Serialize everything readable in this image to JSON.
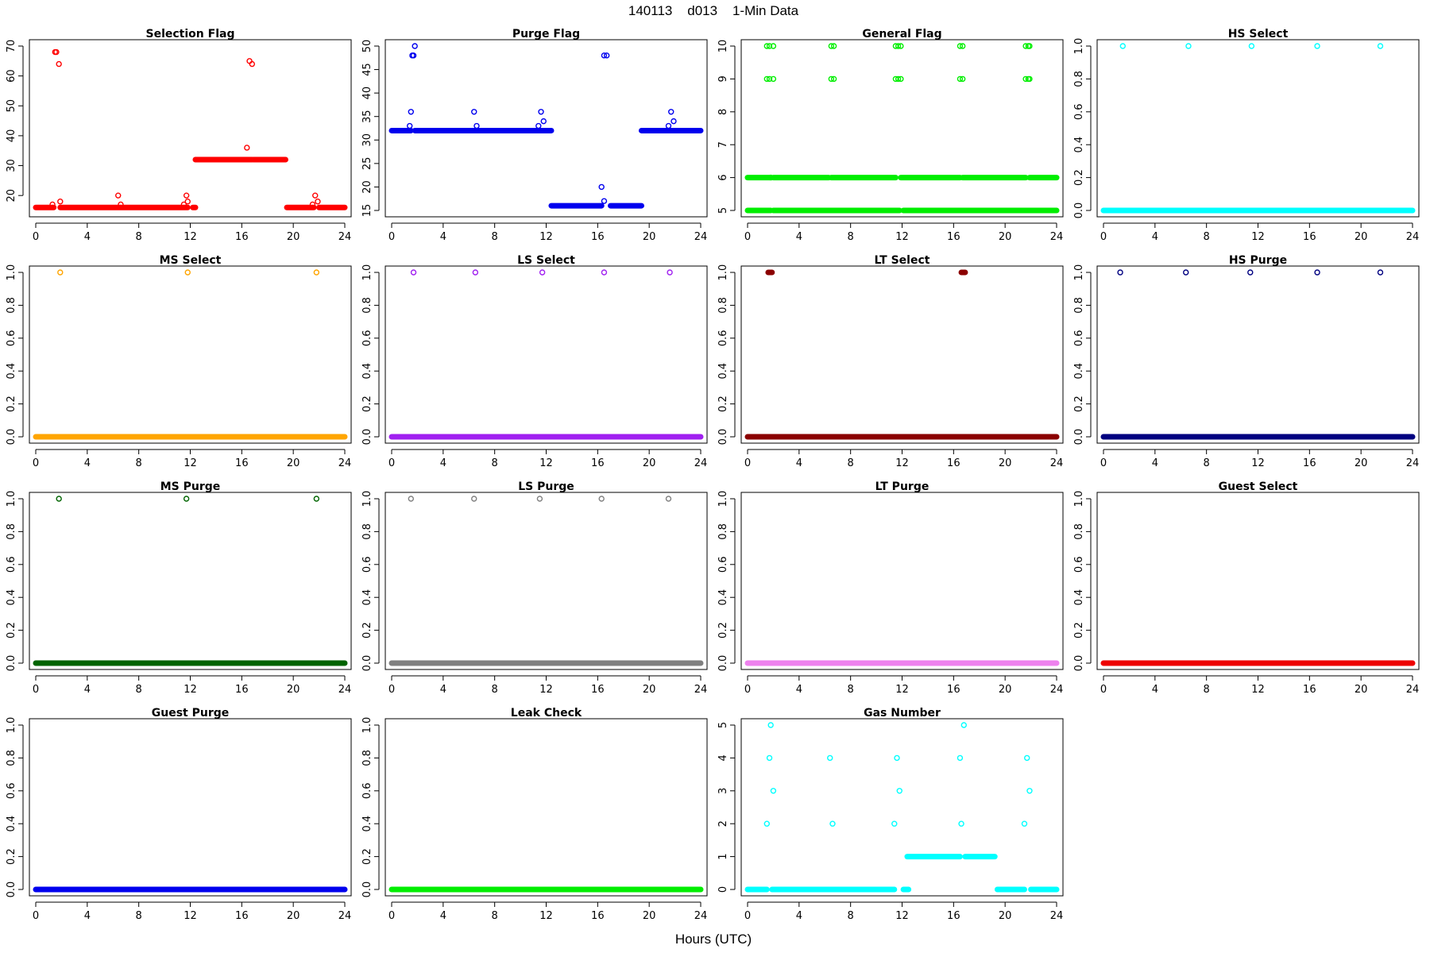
{
  "figure": {
    "title": "140113    d013    1-Min Data",
    "xlabel": "Hours (UTC)"
  },
  "chart_data": [
    {
      "type": "scatter",
      "title": "Selection Flag",
      "color": "#ff0000",
      "xlim": [
        0,
        24
      ],
      "ylim": [
        15,
        70
      ],
      "xticks": [
        0,
        4,
        8,
        12,
        16,
        20,
        24
      ],
      "yticks": [
        20,
        30,
        40,
        50,
        60,
        70
      ],
      "segments": [
        [
          0,
          1.4,
          16
        ],
        [
          1.9,
          11.8,
          16
        ],
        [
          12.2,
          12.4,
          16
        ],
        [
          12.4,
          16.8,
          32
        ],
        [
          16.9,
          19.4,
          32
        ],
        [
          19.5,
          21.6,
          16
        ],
        [
          22.0,
          24,
          16
        ]
      ],
      "points": [
        [
          1.3,
          17
        ],
        [
          1.5,
          68
        ],
        [
          1.6,
          68
        ],
        [
          1.8,
          64
        ],
        [
          1.9,
          18
        ],
        [
          6.4,
          20
        ],
        [
          6.6,
          17
        ],
        [
          11.5,
          17
        ],
        [
          11.7,
          20
        ],
        [
          11.8,
          18
        ],
        [
          16.4,
          36
        ],
        [
          16.6,
          65
        ],
        [
          16.8,
          64
        ],
        [
          21.5,
          17
        ],
        [
          21.7,
          20
        ],
        [
          21.9,
          18
        ]
      ]
    },
    {
      "type": "scatter",
      "title": "Purge Flag",
      "color": "#0000ee",
      "xlim": [
        0,
        24
      ],
      "ylim": [
        15,
        50
      ],
      "xticks": [
        0,
        4,
        8,
        12,
        16,
        20,
        24
      ],
      "yticks": [
        15,
        20,
        25,
        30,
        35,
        40,
        45,
        50
      ],
      "segments": [
        [
          0,
          1.5,
          32
        ],
        [
          1.8,
          12.4,
          32
        ],
        [
          12.4,
          16.3,
          16
        ],
        [
          17.0,
          19.4,
          16
        ],
        [
          19.4,
          24,
          32
        ]
      ],
      "points": [
        [
          1.4,
          33
        ],
        [
          1.5,
          36
        ],
        [
          1.6,
          48
        ],
        [
          1.7,
          48
        ],
        [
          1.8,
          50
        ],
        [
          6.4,
          36
        ],
        [
          6.6,
          33
        ],
        [
          11.4,
          33
        ],
        [
          11.6,
          36
        ],
        [
          11.8,
          34
        ],
        [
          16.3,
          20
        ],
        [
          16.5,
          17
        ],
        [
          16.5,
          48
        ],
        [
          16.7,
          48
        ],
        [
          21.5,
          33
        ],
        [
          21.7,
          36
        ],
        [
          21.9,
          34
        ]
      ]
    },
    {
      "type": "scatter",
      "title": "General Flag",
      "color": "#00ee00",
      "xlim": [
        0,
        24
      ],
      "ylim": [
        5,
        10
      ],
      "xticks": [
        0,
        4,
        8,
        12,
        16,
        20,
        24
      ],
      "yticks": [
        5,
        6,
        7,
        8,
        9,
        10
      ],
      "segments": [
        [
          0,
          1.8,
          5
        ],
        [
          2.0,
          11.8,
          5
        ],
        [
          12.1,
          24,
          5
        ],
        [
          0,
          1.7,
          6
        ],
        [
          2.0,
          6.3,
          6
        ],
        [
          6.5,
          11.5,
          6
        ],
        [
          11.9,
          16.5,
          6
        ],
        [
          16.7,
          21.6,
          6
        ],
        [
          21.9,
          24,
          6
        ]
      ],
      "points": [
        [
          1.5,
          10
        ],
        [
          1.7,
          10
        ],
        [
          2.0,
          10
        ],
        [
          1.5,
          9
        ],
        [
          1.7,
          9
        ],
        [
          2.0,
          9
        ],
        [
          6.5,
          10
        ],
        [
          6.7,
          10
        ],
        [
          6.5,
          9
        ],
        [
          6.7,
          9
        ],
        [
          11.5,
          10
        ],
        [
          11.7,
          10
        ],
        [
          11.9,
          10
        ],
        [
          11.5,
          9
        ],
        [
          11.7,
          9
        ],
        [
          11.9,
          9
        ],
        [
          16.5,
          10
        ],
        [
          16.7,
          10
        ],
        [
          16.5,
          9
        ],
        [
          16.7,
          9
        ],
        [
          21.6,
          10
        ],
        [
          21.8,
          10
        ],
        [
          21.9,
          10
        ],
        [
          21.6,
          9
        ],
        [
          21.8,
          9
        ],
        [
          21.9,
          9
        ],
        [
          1.8,
          6
        ]
      ]
    },
    {
      "type": "scatter",
      "title": "HS Select",
      "color": "#00ffff",
      "xlim": [
        0,
        24
      ],
      "ylim": [
        0,
        1
      ],
      "xticks": [
        0,
        4,
        8,
        12,
        16,
        20,
        24
      ],
      "yticks": [
        0.0,
        0.2,
        0.4,
        0.6,
        0.8,
        1.0
      ],
      "segments": [
        [
          0,
          24,
          0
        ]
      ],
      "points": [
        [
          1.5,
          1
        ],
        [
          6.6,
          1
        ],
        [
          11.5,
          1
        ],
        [
          16.6,
          1
        ],
        [
          21.5,
          1
        ]
      ]
    },
    {
      "type": "scatter",
      "title": "MS Select",
      "color": "#ffa500",
      "xlim": [
        0,
        24
      ],
      "ylim": [
        0,
        1
      ],
      "xticks": [
        0,
        4,
        8,
        12,
        16,
        20,
        24
      ],
      "yticks": [
        0.0,
        0.2,
        0.4,
        0.6,
        0.8,
        1.0
      ],
      "segments": [
        [
          0,
          24,
          0
        ]
      ],
      "points": [
        [
          1.9,
          1
        ],
        [
          11.8,
          1
        ],
        [
          21.8,
          1
        ]
      ]
    },
    {
      "type": "scatter",
      "title": "LS Select",
      "color": "#a020f0",
      "xlim": [
        0,
        24
      ],
      "ylim": [
        0,
        1
      ],
      "xticks": [
        0,
        4,
        8,
        12,
        16,
        20,
        24
      ],
      "yticks": [
        0.0,
        0.2,
        0.4,
        0.6,
        0.8,
        1.0
      ],
      "segments": [
        [
          0,
          24,
          0
        ]
      ],
      "points": [
        [
          1.7,
          1
        ],
        [
          6.5,
          1
        ],
        [
          11.7,
          1
        ],
        [
          16.5,
          1
        ],
        [
          21.6,
          1
        ]
      ]
    },
    {
      "type": "scatter",
      "title": "LT Select",
      "color": "#8b0000",
      "xlim": [
        0,
        24
      ],
      "ylim": [
        0,
        1
      ],
      "xticks": [
        0,
        4,
        8,
        12,
        16,
        20,
        24
      ],
      "yticks": [
        0.0,
        0.2,
        0.4,
        0.6,
        0.8,
        1.0
      ],
      "segments": [
        [
          0,
          24,
          0
        ],
        [
          1.6,
          1.9,
          1
        ],
        [
          16.6,
          16.9,
          1
        ]
      ],
      "points": []
    },
    {
      "type": "scatter",
      "title": "HS Purge",
      "color": "#000080",
      "xlim": [
        0,
        24
      ],
      "ylim": [
        0,
        1
      ],
      "xticks": [
        0,
        4,
        8,
        12,
        16,
        20,
        24
      ],
      "yticks": [
        0.0,
        0.2,
        0.4,
        0.6,
        0.8,
        1.0
      ],
      "segments": [
        [
          0,
          24,
          0
        ]
      ],
      "points": [
        [
          1.3,
          1
        ],
        [
          6.4,
          1
        ],
        [
          11.4,
          1
        ],
        [
          16.6,
          1
        ],
        [
          21.5,
          1
        ]
      ]
    },
    {
      "type": "scatter",
      "title": "MS Purge",
      "color": "#006400",
      "xlim": [
        0,
        24
      ],
      "ylim": [
        0,
        1
      ],
      "xticks": [
        0,
        4,
        8,
        12,
        16,
        20,
        24
      ],
      "yticks": [
        0.0,
        0.2,
        0.4,
        0.6,
        0.8,
        1.0
      ],
      "segments": [
        [
          0,
          24,
          0
        ]
      ],
      "points": [
        [
          1.8,
          1
        ],
        [
          11.7,
          1
        ],
        [
          21.8,
          1
        ]
      ]
    },
    {
      "type": "scatter",
      "title": "LS Purge",
      "color": "#808080",
      "xlim": [
        0,
        24
      ],
      "ylim": [
        0,
        1
      ],
      "xticks": [
        0,
        4,
        8,
        12,
        16,
        20,
        24
      ],
      "yticks": [
        0.0,
        0.2,
        0.4,
        0.6,
        0.8,
        1.0
      ],
      "segments": [
        [
          0,
          24,
          0
        ]
      ],
      "points": [
        [
          1.5,
          1
        ],
        [
          6.4,
          1
        ],
        [
          11.5,
          1
        ],
        [
          16.3,
          1
        ],
        [
          21.5,
          1
        ]
      ]
    },
    {
      "type": "scatter",
      "title": "LT Purge",
      "color": "#ee82ee",
      "xlim": [
        0,
        24
      ],
      "ylim": [
        0,
        1
      ],
      "xticks": [
        0,
        4,
        8,
        12,
        16,
        20,
        24
      ],
      "yticks": [
        0.0,
        0.2,
        0.4,
        0.6,
        0.8,
        1.0
      ],
      "segments": [
        [
          0,
          24,
          0
        ]
      ],
      "points": []
    },
    {
      "type": "scatter",
      "title": "Guest Select",
      "color": "#ee0000",
      "xlim": [
        0,
        24
      ],
      "ylim": [
        0,
        1
      ],
      "xticks": [
        0,
        4,
        8,
        12,
        16,
        20,
        24
      ],
      "yticks": [
        0.0,
        0.2,
        0.4,
        0.6,
        0.8,
        1.0
      ],
      "segments": [
        [
          0,
          24,
          0
        ]
      ],
      "points": []
    },
    {
      "type": "scatter",
      "title": "Guest Purge",
      "color": "#0000ee",
      "xlim": [
        0,
        24
      ],
      "ylim": [
        0,
        1
      ],
      "xticks": [
        0,
        4,
        8,
        12,
        16,
        20,
        24
      ],
      "yticks": [
        0.0,
        0.2,
        0.4,
        0.6,
        0.8,
        1.0
      ],
      "segments": [
        [
          0,
          24,
          0
        ]
      ],
      "points": []
    },
    {
      "type": "scatter",
      "title": "Leak Check",
      "color": "#00ee00",
      "xlim": [
        0,
        24
      ],
      "ylim": [
        0,
        1
      ],
      "xticks": [
        0,
        4,
        8,
        12,
        16,
        20,
        24
      ],
      "yticks": [
        0.0,
        0.2,
        0.4,
        0.6,
        0.8,
        1.0
      ],
      "segments": [
        [
          0,
          24,
          0
        ]
      ],
      "points": []
    },
    {
      "type": "scatter",
      "title": "Gas Number",
      "color": "#00ffff",
      "xlim": [
        0,
        24
      ],
      "ylim": [
        0,
        5
      ],
      "xticks": [
        0,
        4,
        8,
        12,
        16,
        20,
        24
      ],
      "yticks": [
        0,
        1,
        2,
        3,
        4,
        5
      ],
      "segments": [
        [
          0,
          1.5,
          0
        ],
        [
          1.9,
          11.4,
          0
        ],
        [
          12.1,
          12.5,
          0
        ],
        [
          12.4,
          16.5,
          1
        ],
        [
          16.9,
          19.2,
          1
        ],
        [
          19.4,
          21.5,
          0
        ],
        [
          22.0,
          24,
          0
        ]
      ],
      "points": [
        [
          1.5,
          2
        ],
        [
          1.7,
          4
        ],
        [
          1.8,
          5
        ],
        [
          2.0,
          3
        ],
        [
          6.4,
          4
        ],
        [
          6.6,
          2
        ],
        [
          11.4,
          2
        ],
        [
          11.6,
          4
        ],
        [
          11.8,
          3
        ],
        [
          16.5,
          4
        ],
        [
          16.6,
          2
        ],
        [
          16.8,
          5
        ],
        [
          21.5,
          2
        ],
        [
          21.7,
          4
        ],
        [
          21.9,
          3
        ]
      ]
    }
  ]
}
